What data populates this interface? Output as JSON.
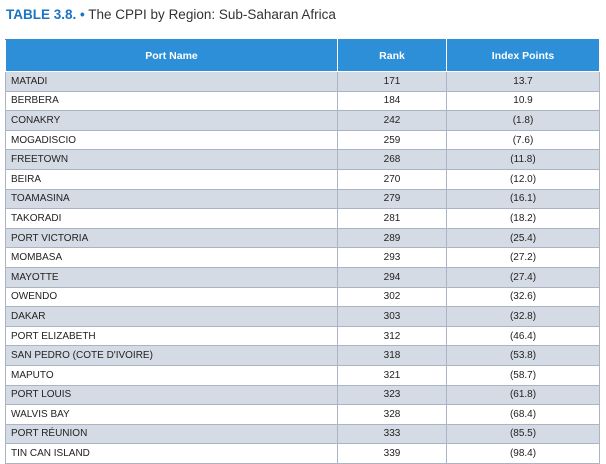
{
  "caption": {
    "number": "TABLE 3.8.",
    "bullet": "•",
    "title": "The CPPI by Region: Sub-Saharan Africa"
  },
  "table": {
    "headers": [
      "Port Name",
      "Rank",
      "Index Points"
    ],
    "rows": [
      {
        "port": "MATADI",
        "rank": "171",
        "points": "13.7"
      },
      {
        "port": "BERBERA",
        "rank": "184",
        "points": "10.9"
      },
      {
        "port": "CONAKRY",
        "rank": "242",
        "points": "(1.8)"
      },
      {
        "port": "MOGADISCIO",
        "rank": "259",
        "points": "(7.6)"
      },
      {
        "port": "FREETOWN",
        "rank": "268",
        "points": "(11.8)"
      },
      {
        "port": "BEIRA",
        "rank": "270",
        "points": "(12.0)"
      },
      {
        "port": "TOAMASINA",
        "rank": "279",
        "points": "(16.1)"
      },
      {
        "port": "TAKORADI",
        "rank": "281",
        "points": "(18.2)"
      },
      {
        "port": "PORT VICTORIA",
        "rank": "289",
        "points": "(25.4)"
      },
      {
        "port": "MOMBASA",
        "rank": "293",
        "points": "(27.2)"
      },
      {
        "port": "MAYOTTE",
        "rank": "294",
        "points": "(27.4)"
      },
      {
        "port": "OWENDO",
        "rank": "302",
        "points": "(32.6)"
      },
      {
        "port": "DAKAR",
        "rank": "303",
        "points": "(32.8)"
      },
      {
        "port": "PORT ELIZABETH",
        "rank": "312",
        "points": "(46.4)"
      },
      {
        "port": "SAN PEDRO (COTE D'IVOIRE)",
        "rank": "318",
        "points": "(53.8)"
      },
      {
        "port": "MAPUTO",
        "rank": "321",
        "points": "(58.7)"
      },
      {
        "port": "PORT LOUIS",
        "rank": "323",
        "points": "(61.8)"
      },
      {
        "port": "WALVIS BAY",
        "rank": "328",
        "points": "(68.4)"
      },
      {
        "port": "PORT RÉUNION",
        "rank": "333",
        "points": "(85.5)"
      },
      {
        "port": "TIN CAN ISLAND",
        "rank": "339",
        "points": "(98.4)"
      }
    ]
  }
}
